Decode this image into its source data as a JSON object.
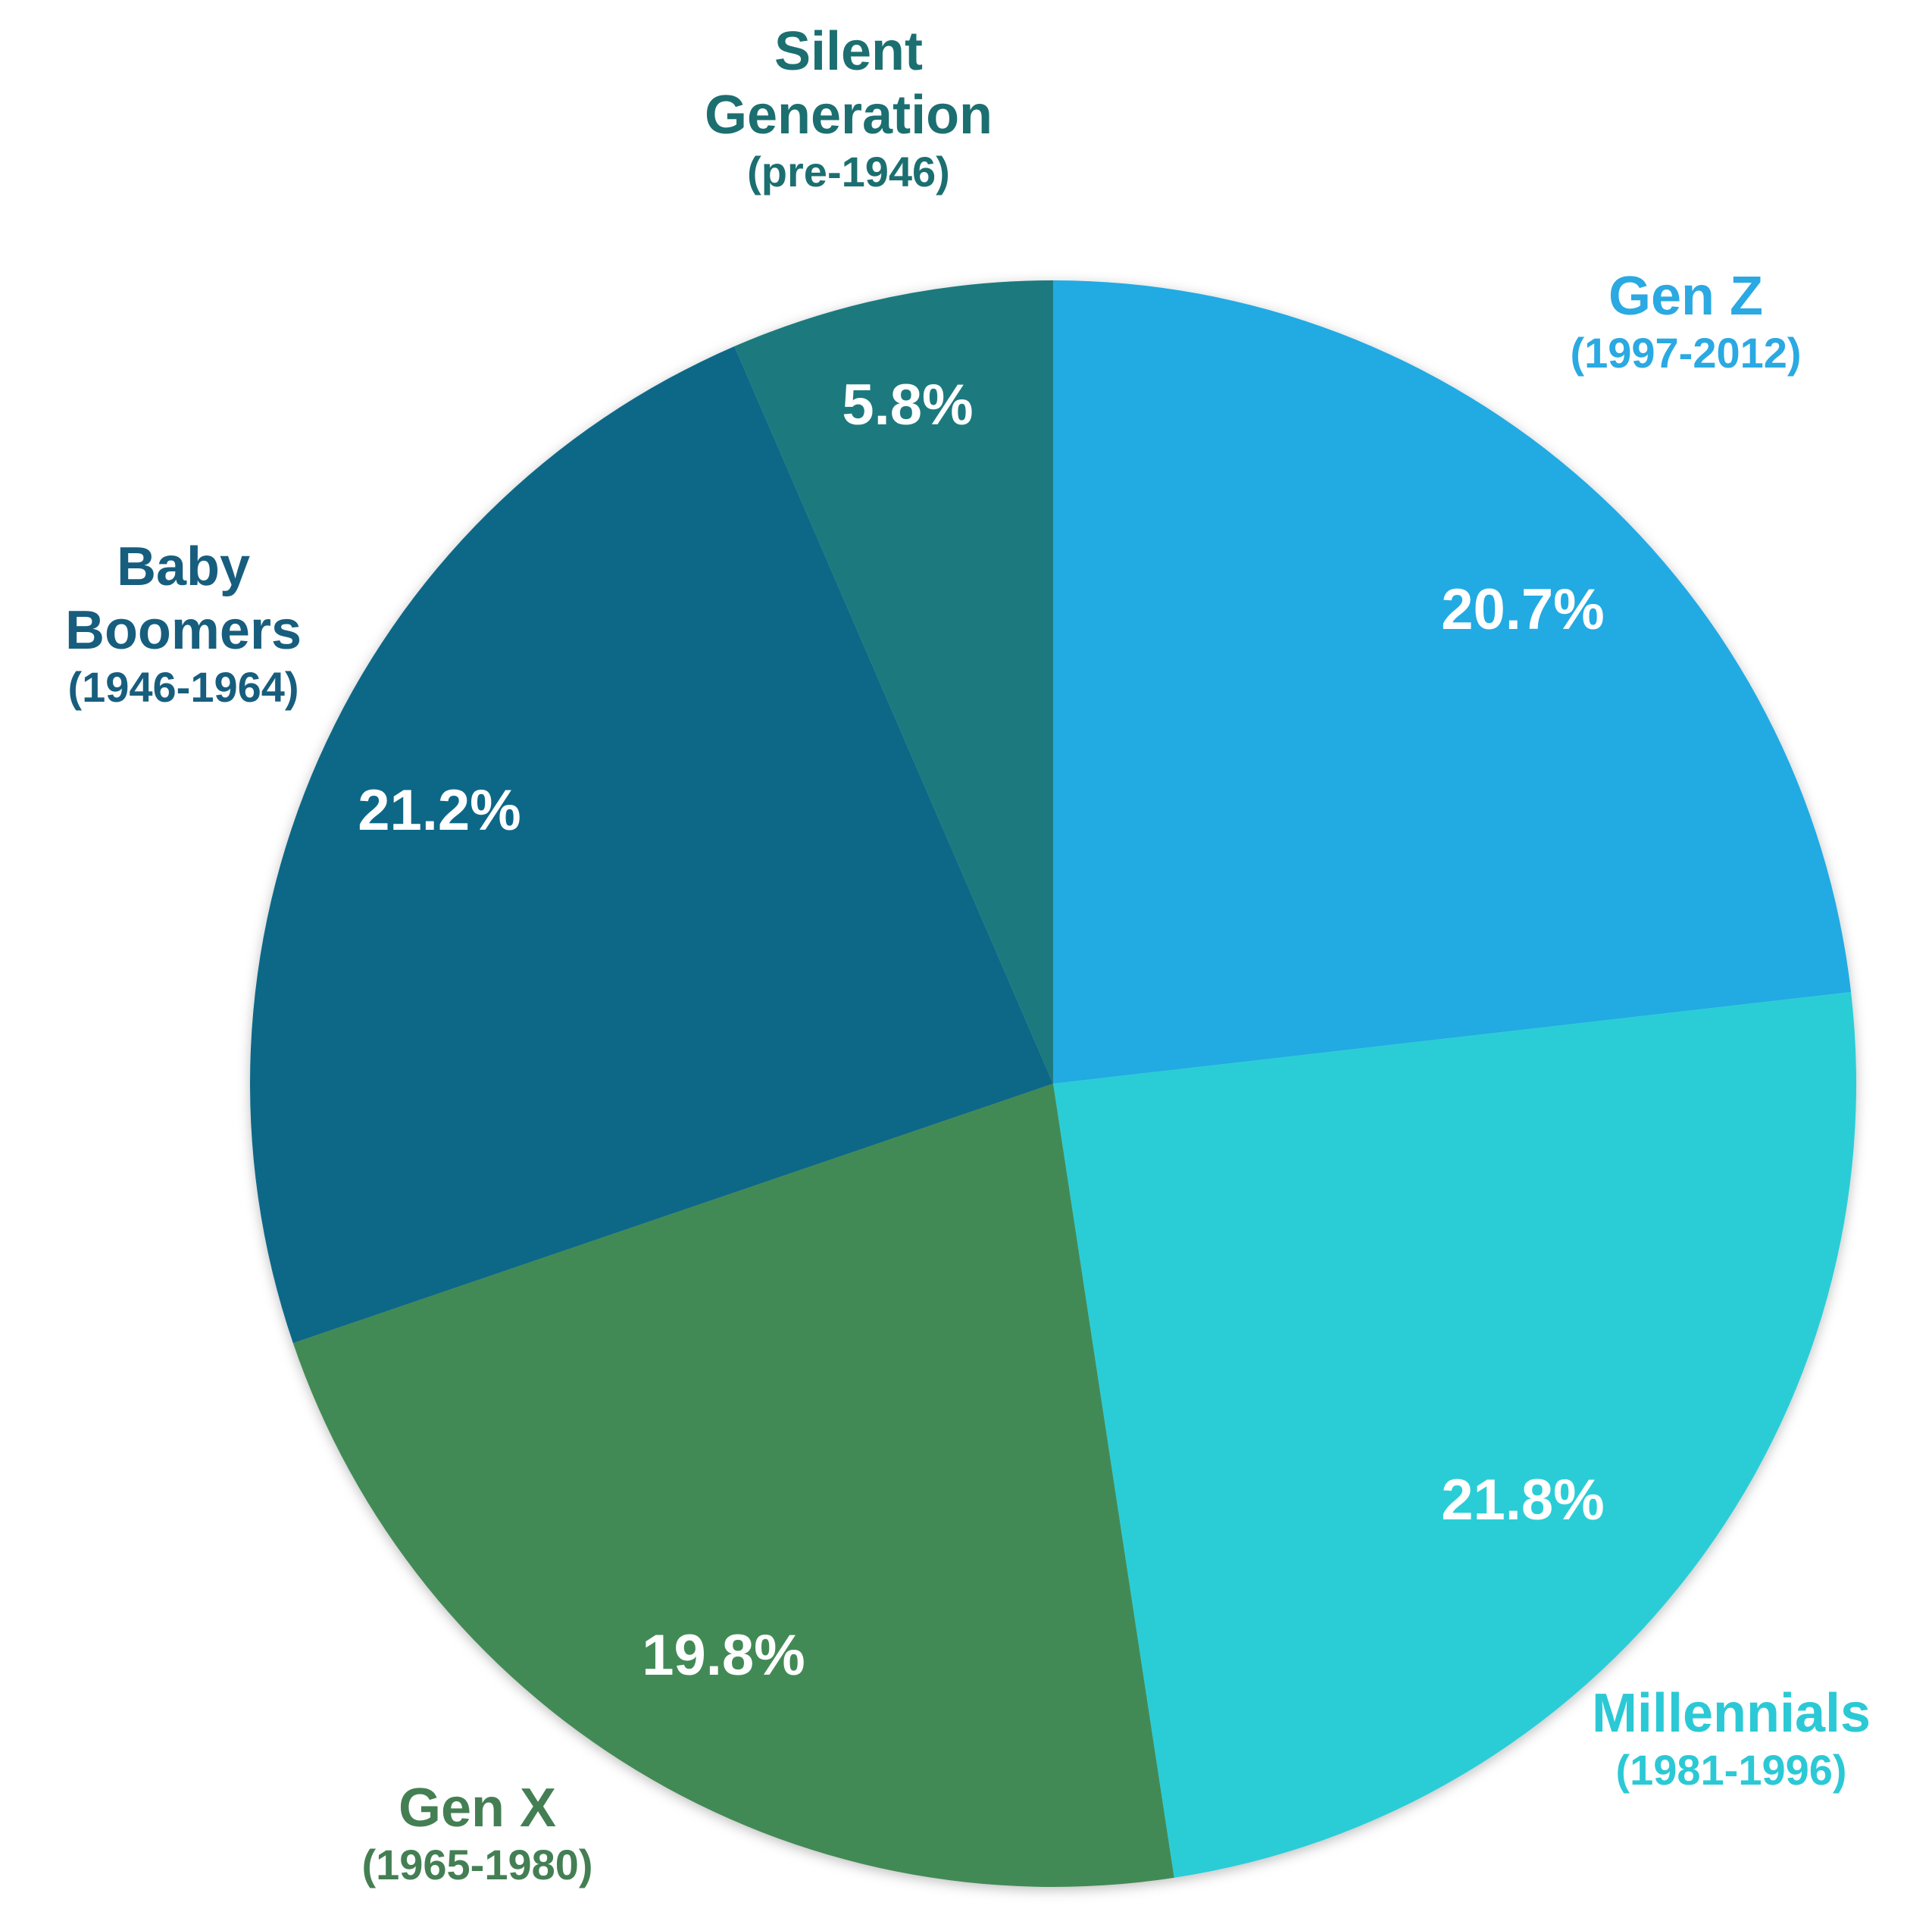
{
  "chart_data": {
    "type": "pie",
    "title": "",
    "start": "top",
    "direction": "clockwise",
    "slices": [
      {
        "name_lines": [
          "Gen Z"
        ],
        "years": "(1997-2012)",
        "value": 20.7,
        "label": "20.7%",
        "color": "#21aae3"
      },
      {
        "name_lines": [
          "Millennials"
        ],
        "years": "(1981-1996)",
        "value": 21.8,
        "label": "21.8%",
        "color": "#2acdd6"
      },
      {
        "name_lines": [
          "Gen X"
        ],
        "years": "(1965-1980)",
        "value": 19.8,
        "label": "19.8%",
        "color": "#438a54"
      },
      {
        "name_lines": [
          "Baby",
          "Boomers"
        ],
        "years": "(1946-1964)",
        "value": 21.2,
        "label": "21.2%",
        "color": "#116887"
      },
      {
        "name_lines": [
          "Silent",
          "Generation"
        ],
        "years": "(pre-1946)",
        "value": 5.8,
        "label": "5.8%",
        "color": "#1b7a7f"
      }
    ],
    "label_colors": [
      "#2aa9e2",
      "#2bc9d5",
      "#447f54",
      "#175e7e",
      "#1c6f70"
    ]
  }
}
